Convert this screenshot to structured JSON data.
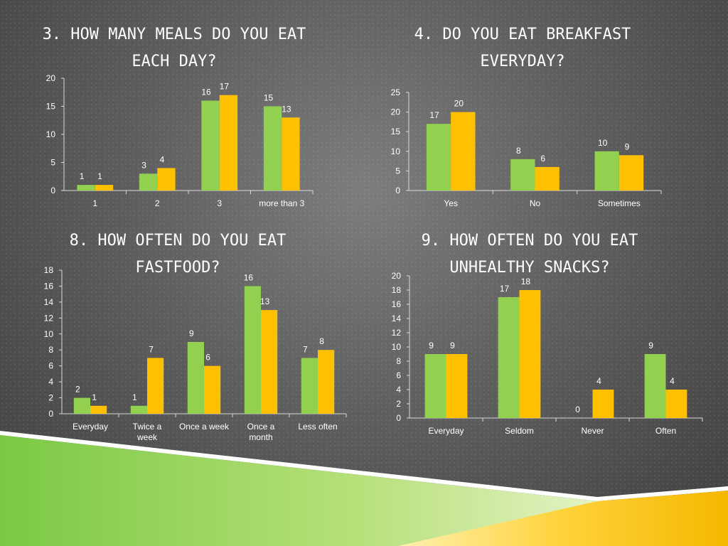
{
  "colors": {
    "series_a": "#92d050",
    "series_b": "#ffc000",
    "text": "#ffffff",
    "axis": "#d9d9d9"
  },
  "chart_data": [
    {
      "id": "meals",
      "type": "bar",
      "title": "3. HOW MANY MEALS DO YOU EAT EACH DAY?",
      "categories": [
        "1",
        "2",
        "3",
        "more than 3"
      ],
      "series": [
        {
          "values": [
            1,
            3,
            16,
            15
          ]
        },
        {
          "values": [
            1,
            4,
            17,
            13
          ]
        }
      ],
      "ylim": [
        0,
        20
      ],
      "yticks": [
        0,
        5,
        10,
        15,
        20
      ]
    },
    {
      "id": "breakfast",
      "type": "bar",
      "title": "4. DO YOU EAT BREAKFAST EVERYDAY?",
      "categories": [
        "Yes",
        "No",
        "Sometimes"
      ],
      "series": [
        {
          "values": [
            17,
            8,
            10
          ]
        },
        {
          "values": [
            20,
            6,
            9
          ]
        }
      ],
      "ylim": [
        0,
        25
      ],
      "yticks": [
        0,
        5,
        10,
        15,
        20,
        25
      ]
    },
    {
      "id": "fastfood",
      "type": "bar",
      "title": "8. HOW OFTEN DO YOU EAT FASTFOOD?",
      "categories": [
        [
          "Everyday"
        ],
        [
          "Twice a",
          "week"
        ],
        [
          "Once a week"
        ],
        [
          "Once a",
          "month"
        ],
        [
          "Less often"
        ]
      ],
      "series": [
        {
          "values": [
            2,
            1,
            9,
            16,
            7
          ]
        },
        {
          "values": [
            1,
            7,
            6,
            13,
            8
          ]
        }
      ],
      "ylim": [
        0,
        18
      ],
      "yticks": [
        0,
        2,
        4,
        6,
        8,
        10,
        12,
        14,
        16,
        18
      ]
    },
    {
      "id": "snacks",
      "type": "bar",
      "title": "9. HOW OFTEN DO YOU EAT UNHEALTHY SNACKS?",
      "categories": [
        "Everyday",
        "Seldom",
        "Never",
        "Often"
      ],
      "series": [
        {
          "values": [
            9,
            17,
            0,
            9
          ]
        },
        {
          "values": [
            9,
            18,
            4,
            4
          ]
        }
      ],
      "ylim": [
        0,
        20
      ],
      "yticks": [
        0,
        2,
        4,
        6,
        8,
        10,
        12,
        14,
        16,
        18,
        20
      ]
    }
  ]
}
